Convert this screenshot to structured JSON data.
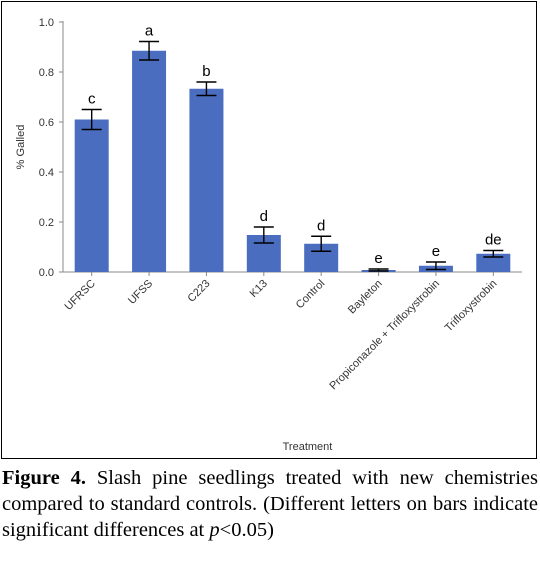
{
  "chart_data": {
    "type": "bar",
    "categories": [
      "UFRSC",
      "UFSS",
      "C223",
      "K13",
      "Control",
      "Bayleton",
      "Propiconazole + Trifloxystrobin",
      "Trifloxystrobin"
    ],
    "values": [
      0.61,
      0.885,
      0.733,
      0.148,
      0.113,
      0.008,
      0.025,
      0.073
    ],
    "errors": [
      0.04,
      0.037,
      0.027,
      0.032,
      0.03,
      0.004,
      0.015,
      0.013
    ],
    "significance_letters": [
      "c",
      "a",
      "b",
      "d",
      "d",
      "e",
      "e",
      "de"
    ],
    "xlabel": "Treatment",
    "ylabel": "% Galled",
    "ylim": [
      0,
      1.0
    ],
    "yticks": [
      "0.0",
      "0.2",
      "0.4",
      "0.6",
      "0.8",
      "1.0"
    ],
    "bar_color": "#4a6dbf",
    "grid": false,
    "legend": "none"
  },
  "caption": {
    "label": "Figure 4.",
    "text_before_p": " Slash pine seedlings treated with new chemistries compared to standard controls. (Different letters on bars indicate significant differences at ",
    "p_symbol": "p",
    "text_after_p": "<0.05)"
  }
}
